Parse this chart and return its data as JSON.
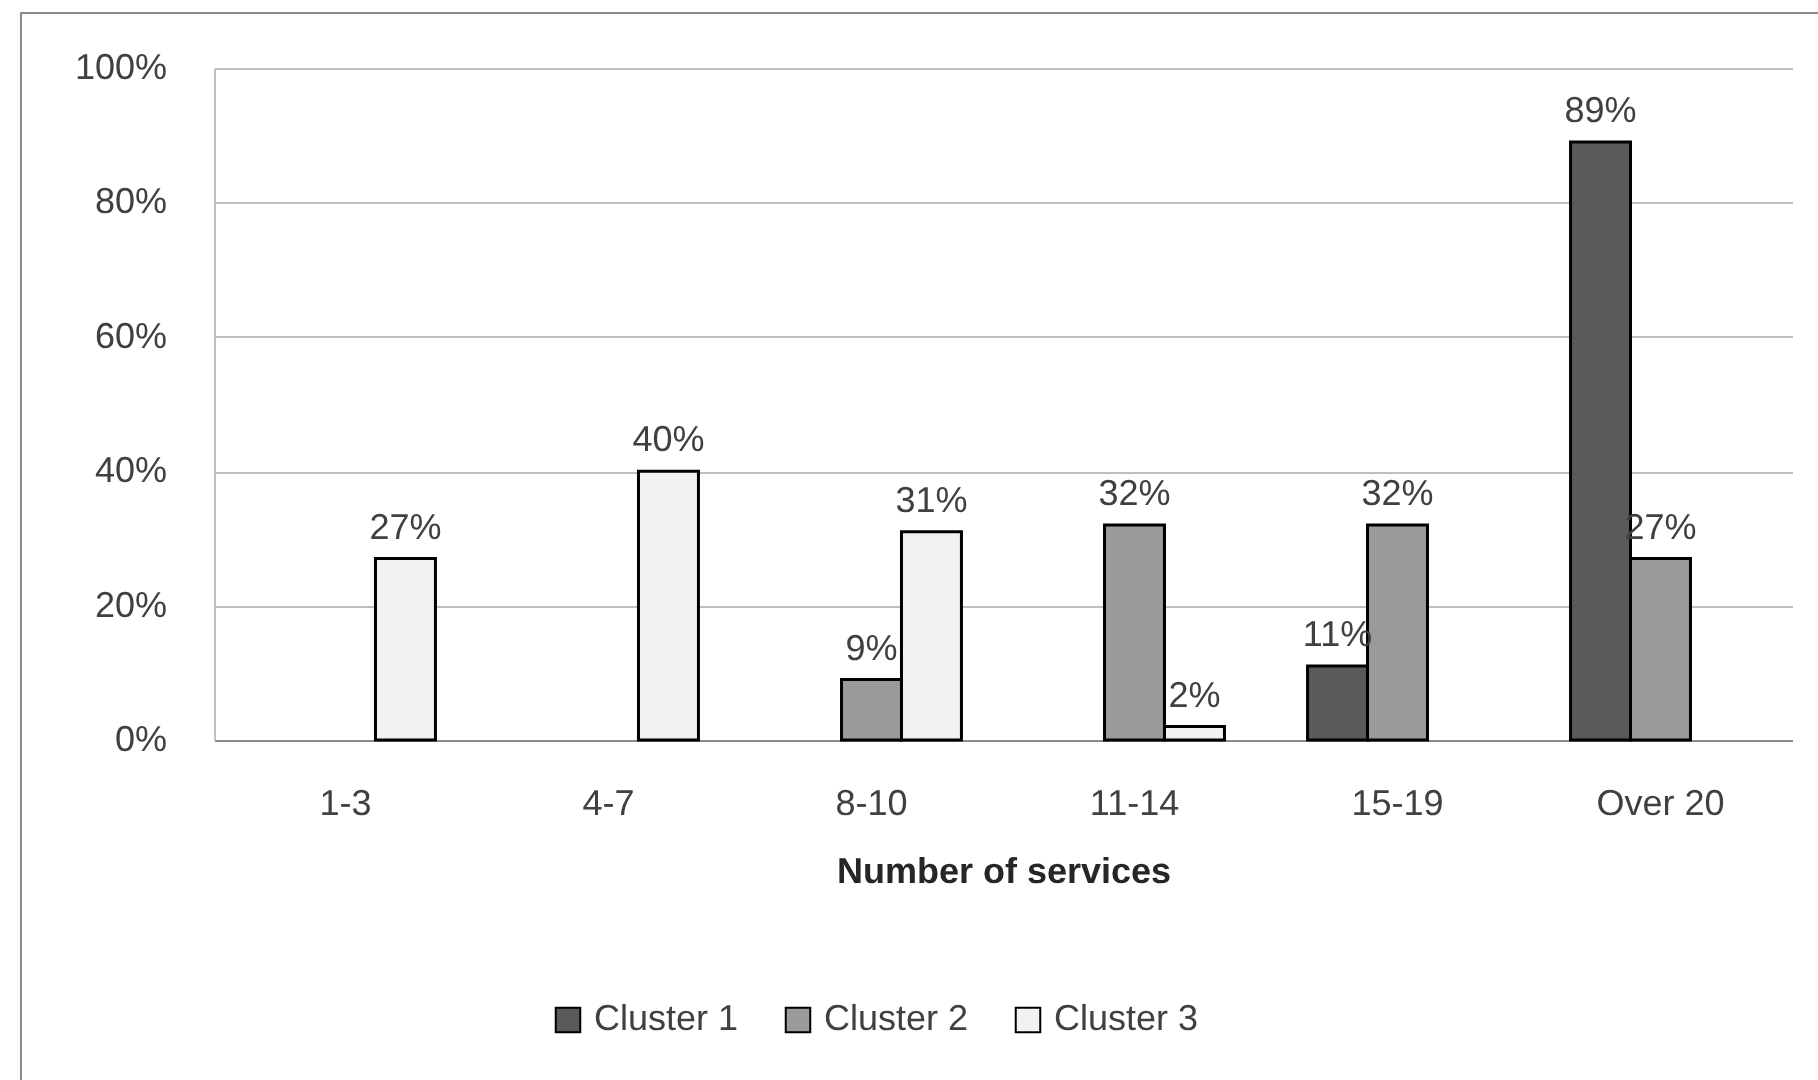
{
  "chart_data": {
    "type": "bar",
    "xlabel": "Number of services",
    "categories": [
      "1-3",
      "4-7",
      "8-10",
      "11-14",
      "15-19",
      "Over 20"
    ],
    "series": [
      {
        "name": "Cluster 1",
        "color": "#5a5a5a",
        "values": [
          null,
          null,
          null,
          null,
          11,
          89
        ],
        "value_labels": [
          null,
          null,
          null,
          null,
          "11%",
          "89%"
        ]
      },
      {
        "name": "Cluster 2",
        "color": "#9a9a9a",
        "values": [
          null,
          null,
          9,
          32,
          32,
          27
        ],
        "value_labels": [
          null,
          null,
          "9%",
          "32%",
          "32%",
          "27%"
        ]
      },
      {
        "name": "Cluster 3",
        "color": "#f2f2f2",
        "values": [
          27,
          40,
          31,
          2,
          null,
          null
        ],
        "value_labels": [
          "27%",
          "40%",
          "31%",
          "2%",
          null,
          null
        ]
      }
    ],
    "ylim": [
      0,
      100
    ],
    "yticks": [
      {
        "value": 0,
        "label": "0%"
      },
      {
        "value": 20,
        "label": "20%"
      },
      {
        "value": 40,
        "label": "40%"
      },
      {
        "value": 60,
        "label": "60%"
      },
      {
        "value": 80,
        "label": "80%"
      },
      {
        "value": 100,
        "label": "100%"
      }
    ],
    "grid": "y",
    "legend": "bottom"
  }
}
